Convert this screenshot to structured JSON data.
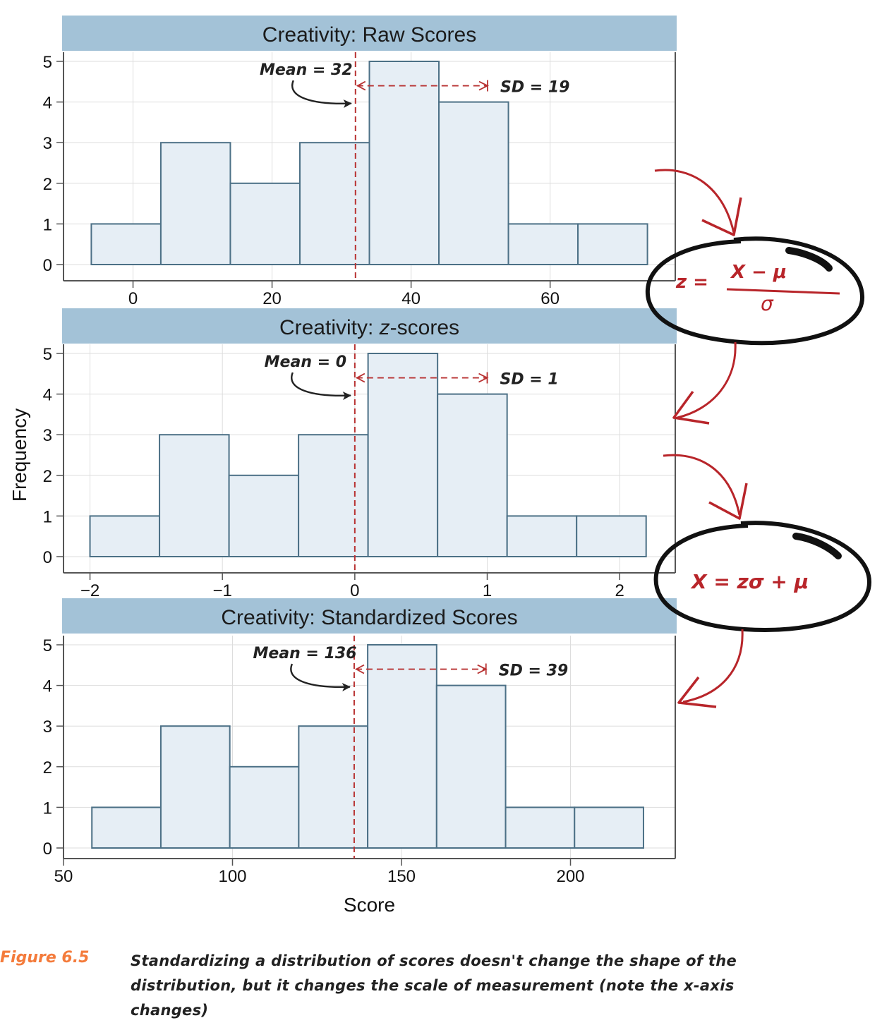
{
  "chart_data": [
    {
      "type": "bar",
      "title": "Creativity: Raw Scores",
      "bin_edges": [
        -6,
        4,
        14,
        24,
        34,
        44,
        54,
        64,
        74
      ],
      "values": [
        1,
        3,
        2,
        3,
        5,
        4,
        1,
        1
      ],
      "xlim": [
        -10,
        78
      ],
      "xticks": [
        0,
        20,
        40,
        60
      ],
      "xtick_labels": [
        "0",
        "20",
        "40",
        "60"
      ],
      "ylim": [
        0,
        5.5
      ],
      "yticks": [
        0,
        1,
        2,
        3,
        4,
        5
      ],
      "mean": 32,
      "sd": 19,
      "mean_label": "Mean = 32",
      "sd_label": "SD = 19",
      "grid": true
    },
    {
      "type": "bar",
      "title_main": "Creativity: ",
      "title_italic": "z",
      "title_rest": "-scores",
      "bin_edges": [
        -2,
        -1.475,
        -0.95,
        -0.425,
        0.1,
        0.625,
        1.15,
        1.675,
        2.2
      ],
      "values": [
        1,
        3,
        2,
        3,
        5,
        4,
        1,
        1
      ],
      "xlim": [
        -2.2,
        2.42
      ],
      "xticks": [
        -2,
        -1,
        0,
        1,
        2
      ],
      "xtick_labels": [
        "−2",
        "−1",
        "0",
        "1",
        "2"
      ],
      "ylim": [
        0,
        5.5
      ],
      "yticks": [
        0,
        1,
        2,
        3,
        4,
        5
      ],
      "mean": 0,
      "sd": 1,
      "mean_label": "Mean = 0",
      "sd_label": "SD = 1",
      "grid": true
    },
    {
      "type": "bar",
      "title": "Creativity: Standardized Scores",
      "bin_edges": [
        58.4,
        78.8,
        99.2,
        119.6,
        140,
        160.4,
        180.8,
        201.2,
        221.6
      ],
      "values": [
        1,
        3,
        2,
        3,
        5,
        4,
        1,
        1
      ],
      "xlim": [
        50,
        231
      ],
      "xticks": [
        50,
        100,
        150,
        200
      ],
      "xtick_labels": [
        "50",
        "100",
        "150",
        "200"
      ],
      "xlabel": "Score",
      "ylim": [
        0,
        5.5
      ],
      "yticks": [
        0,
        1,
        2,
        3,
        4,
        5
      ],
      "mean": 136,
      "sd": 39,
      "mean_label": "Mean = 136",
      "sd_label": "SD = 39",
      "grid": true
    }
  ],
  "shared_ylabel": "Frequency",
  "formulas": {
    "z_to": "z =",
    "numerator": "X − μ",
    "denominator": "σ",
    "x_formula": "X = zσ + μ"
  },
  "caption": {
    "label": "Figure 6.5",
    "text": "Standardizing a distribution of scores doesn't change the shape of the distribution, but it changes the scale of measurement (note the x-axis changes)"
  },
  "colors": {
    "title_bar": "#a3c2d7",
    "bar_fill": "#e6eef5",
    "bar_stroke": "#4c7086",
    "mean_line": "#b83232",
    "annotation_red": "#b8252a",
    "grid": "#dddddd",
    "axis": "#555555",
    "caption_label": "#f47b3b"
  }
}
